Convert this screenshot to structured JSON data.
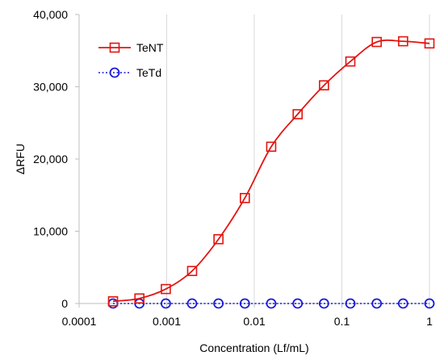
{
  "chart_data": {
    "type": "scatter",
    "xlabel": "Concentration (Lf/mL)",
    "ylabel": "ΔRFU",
    "xscale": "log",
    "xlim": [
      0.0001,
      1
    ],
    "ylim": [
      0,
      40000
    ],
    "x_ticks": [
      0.0001,
      0.001,
      0.01,
      0.1,
      1
    ],
    "x_tick_labels": [
      "0.0001",
      "0.001",
      "0.01",
      "0.1",
      "1"
    ],
    "y_ticks": [
      0,
      10000,
      20000,
      30000,
      40000
    ],
    "y_tick_labels": [
      "0",
      "10,000",
      "20,000",
      "30,000",
      "40,000"
    ],
    "grid": "vertical",
    "legend_position": "top-left",
    "series": [
      {
        "name": "TeNT",
        "color": "#e3140f",
        "marker": "square-open",
        "line": "smooth-solid",
        "x": [
          0.000244,
          0.000488,
          0.000977,
          0.00195,
          0.0039,
          0.0078,
          0.0156,
          0.03125,
          0.0625,
          0.125,
          0.25,
          0.5,
          1
        ],
        "y": [
          300,
          700,
          2000,
          4500,
          8900,
          14600,
          21700,
          26200,
          30200,
          33500,
          36200,
          36300,
          36000
        ]
      },
      {
        "name": "TeTd",
        "color": "#1a1ad6",
        "marker": "circle-open",
        "line": "dotted",
        "x": [
          0.000244,
          0.000488,
          0.000977,
          0.00195,
          0.0039,
          0.0078,
          0.0156,
          0.03125,
          0.0625,
          0.125,
          0.25,
          0.5,
          1
        ],
        "y": [
          0,
          0,
          0,
          0,
          0,
          0,
          0,
          0,
          0,
          0,
          0,
          0,
          0
        ]
      }
    ]
  }
}
